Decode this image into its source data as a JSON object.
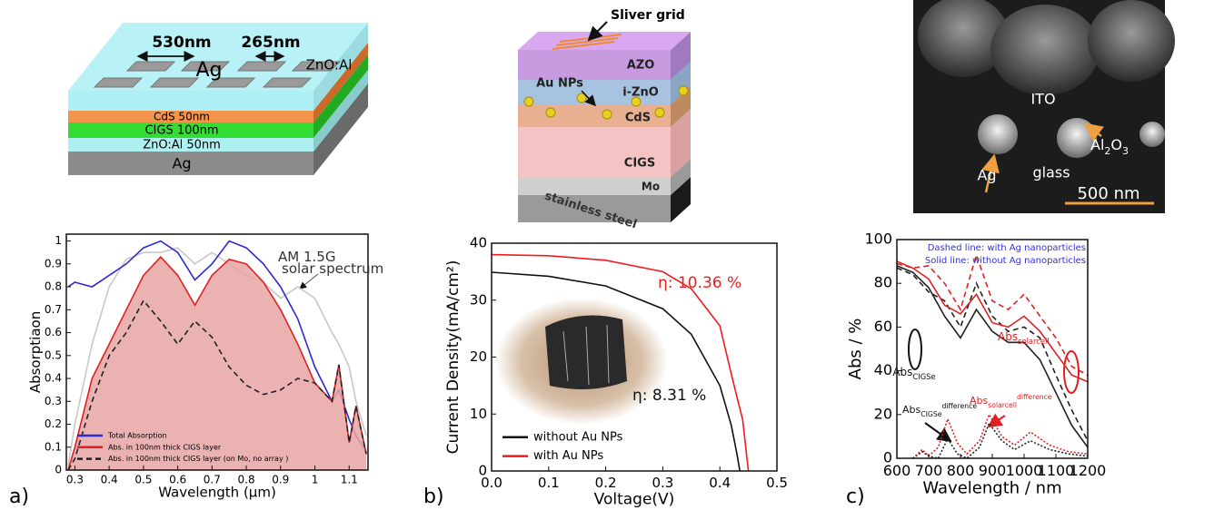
{
  "panels": [
    "a)",
    "b)",
    "c)"
  ],
  "diagrams": {
    "a": {
      "labels": [
        "530nm",
        "265nm",
        "Ag",
        "ZnO:Al",
        "CdS 50nm",
        "CIGS 100nm",
        "ZnO:Al 50nm",
        "Ag"
      ]
    },
    "b": {
      "labels": [
        "Sliver grid",
        "AZO",
        "i-ZnO",
        "Au NPs",
        "CdS",
        "CIGS",
        "Mo",
        "stainless steel"
      ]
    },
    "c": {
      "labels": [
        "ITO",
        "Ag",
        "glass",
        "500 nm"
      ],
      "oxide": [
        "Al",
        "2",
        "O",
        "3"
      ]
    }
  },
  "chart_data": [
    {
      "type": "line",
      "xlabel": "Wavelength (μm)",
      "ylabel": "Absorptiaon",
      "xlim": [
        0.275,
        1.155
      ],
      "ylim": [
        0,
        1.03
      ],
      "xticks": [
        0.3,
        0.4,
        0.5,
        0.6,
        0.7,
        0.8,
        0.9,
        1,
        1.1
      ],
      "yticks": [
        0,
        0.1,
        0.2,
        0.3,
        0.4,
        0.5,
        0.6,
        0.7,
        0.8,
        0.9,
        1
      ],
      "x": [
        0.28,
        0.3,
        0.35,
        0.4,
        0.45,
        0.5,
        0.55,
        0.6,
        0.65,
        0.7,
        0.75,
        0.8,
        0.85,
        0.9,
        0.95,
        1.0,
        1.05,
        1.07,
        1.1,
        1.12,
        1.15
      ],
      "legend": "lower left",
      "series": [
        {
          "color": "#c8c8c8",
          "values": [
            0.02,
            0.2,
            0.55,
            0.8,
            0.92,
            0.95,
            0.95,
            0.97,
            0.9,
            0.95,
            0.9,
            0.85,
            0.82,
            0.75,
            0.8,
            0.75,
            0.6,
            0.55,
            0.45,
            0.3,
            0.15
          ]
        },
        {
          "name": "Total Absorption",
          "color": "#2b2bd6",
          "values": [
            0.8,
            0.82,
            0.8,
            0.85,
            0.9,
            0.97,
            1.0,
            0.95,
            0.83,
            0.9,
            1.0,
            0.97,
            0.9,
            0.8,
            0.66,
            0.45,
            0.3,
            0.35,
            0.22,
            0.15,
            0.08
          ]
        },
        {
          "name": "Abs. in 100nm thick CIGS layer",
          "color": "#e02020",
          "fill": "#e8a4a4",
          "values": [
            0.0,
            0.1,
            0.4,
            0.55,
            0.7,
            0.85,
            0.93,
            0.85,
            0.72,
            0.85,
            0.92,
            0.9,
            0.82,
            0.7,
            0.55,
            0.38,
            0.3,
            0.46,
            0.12,
            0.28,
            0.07
          ]
        },
        {
          "name": "Abs. in 100nm thick CIGS layer (on Mo, no array )",
          "color": "#222222",
          "dash": "dashed",
          "values": [
            0.0,
            0.05,
            0.3,
            0.5,
            0.6,
            0.74,
            0.65,
            0.55,
            0.65,
            0.58,
            0.45,
            0.37,
            0.33,
            0.35,
            0.4,
            0.38,
            0.3,
            0.46,
            0.12,
            0.28,
            0.07
          ]
        }
      ],
      "annotations": [
        {
          "parts": [
            "AM 1.5G"
          ],
          "color": "#333333"
        },
        {
          "parts": [
            "solar spectrum"
          ],
          "color": "#333333"
        }
      ]
    },
    {
      "type": "line",
      "xlabel": "Voltage(V)",
      "ylabel": "Current Density(mA/cm²)",
      "xlim": [
        0,
        0.5
      ],
      "ylim": [
        0,
        40
      ],
      "xticks": [
        {
          "value": 0,
          "label": "0.0"
        },
        0.1,
        0.2,
        0.3,
        0.4,
        0.5
      ],
      "yticks": [
        0,
        10,
        20,
        30,
        40
      ],
      "legend": "lower left",
      "series": [
        {
          "name": "without Au NPs",
          "color": "#111111",
          "x": [
            0,
            0.1,
            0.2,
            0.3,
            0.35,
            0.4,
            0.42,
            0.43,
            0.435
          ],
          "values": [
            34.9,
            34.2,
            32.5,
            28.5,
            24,
            15,
            8,
            3,
            0
          ]
        },
        {
          "name": "with Au NPs",
          "color": "#ee1c1c",
          "x": [
            0,
            0.1,
            0.2,
            0.3,
            0.35,
            0.4,
            0.42,
            0.44,
            0.45
          ],
          "values": [
            38,
            37.8,
            37,
            35,
            32,
            25.5,
            17,
            9,
            0
          ]
        }
      ],
      "annotations": [
        {
          "parts": [
            "η: 10.36 %"
          ],
          "color": "#ee1c1c"
        },
        {
          "parts": [
            "η: 8.31 %"
          ],
          "color": "#111111"
        }
      ]
    },
    {
      "type": "line",
      "xlabel": "Wavelength / nm",
      "ylabel": "Abs / %",
      "xlim": [
        600,
        1200
      ],
      "ylim": [
        0,
        100
      ],
      "xticks": [
        600,
        700,
        800,
        900,
        1000,
        1100,
        1200
      ],
      "yticks": [
        0,
        20,
        40,
        60,
        80,
        100
      ],
      "x": [
        600,
        650,
        700,
        750,
        800,
        850,
        900,
        950,
        1000,
        1050,
        1100,
        1150,
        1200
      ],
      "series": [
        {
          "color": "#222222",
          "values": [
            88,
            85,
            78,
            65,
            55,
            68,
            58,
            53,
            53,
            45,
            30,
            15,
            5
          ]
        },
        {
          "color": "#222222",
          "dash": "dashed",
          "values": [
            87,
            84,
            76,
            72,
            60,
            80,
            65,
            58,
            60,
            55,
            38,
            22,
            8
          ]
        },
        {
          "color": "#e02020",
          "values": [
            90,
            87,
            82,
            70,
            66,
            75,
            62,
            60,
            65,
            58,
            48,
            38,
            35
          ]
        },
        {
          "color": "#e02020",
          "dash": "dashed",
          "values": [
            89,
            87,
            88,
            80,
            68,
            93,
            72,
            68,
            75,
            65,
            55,
            42,
            38
          ]
        },
        {
          "color": "#222222",
          "dash": "dotted",
          "x": [
            650,
            680,
            700,
            730,
            760,
            790,
            820,
            860,
            890,
            930,
            970,
            1020,
            1080,
            1140,
            1200
          ],
          "values": [
            0,
            3,
            1,
            0,
            9,
            2,
            0,
            5,
            16,
            8,
            4,
            8,
            4,
            2,
            1
          ]
        },
        {
          "color": "#e02020",
          "dash": "dotted",
          "x": [
            650,
            680,
            700,
            730,
            760,
            790,
            820,
            860,
            890,
            930,
            970,
            1020,
            1080,
            1140,
            1200
          ],
          "values": [
            0,
            4,
            1,
            5,
            18,
            7,
            2,
            8,
            20,
            10,
            6,
            12,
            6,
            3,
            2
          ]
        }
      ],
      "annotations": [
        {
          "parts": [
            "Dashed line: with Ag nanoparticles"
          ],
          "color": "#3030e0"
        },
        {
          "parts": [
            "Solid line: without Ag nanoparticles"
          ],
          "color": "#3030e0"
        },
        {
          "parts": [
            "Abs",
            "solarcell"
          ],
          "shift": [
            "base",
            "sub"
          ],
          "color": "#e02020"
        },
        {
          "parts": [
            "Abs",
            "CIGSe"
          ],
          "shift": [
            "base",
            "sub"
          ],
          "color": "#111111"
        },
        {
          "parts": [
            "Abs",
            "CIGSe",
            "difference"
          ],
          "shift": [
            "base",
            "sub",
            "sup"
          ],
          "color": "#111111"
        },
        {
          "parts": [
            "Abs",
            "solarcell",
            "difference"
          ],
          "shift": [
            "base",
            "sub",
            "sup"
          ],
          "color": "#e02020"
        }
      ]
    }
  ]
}
